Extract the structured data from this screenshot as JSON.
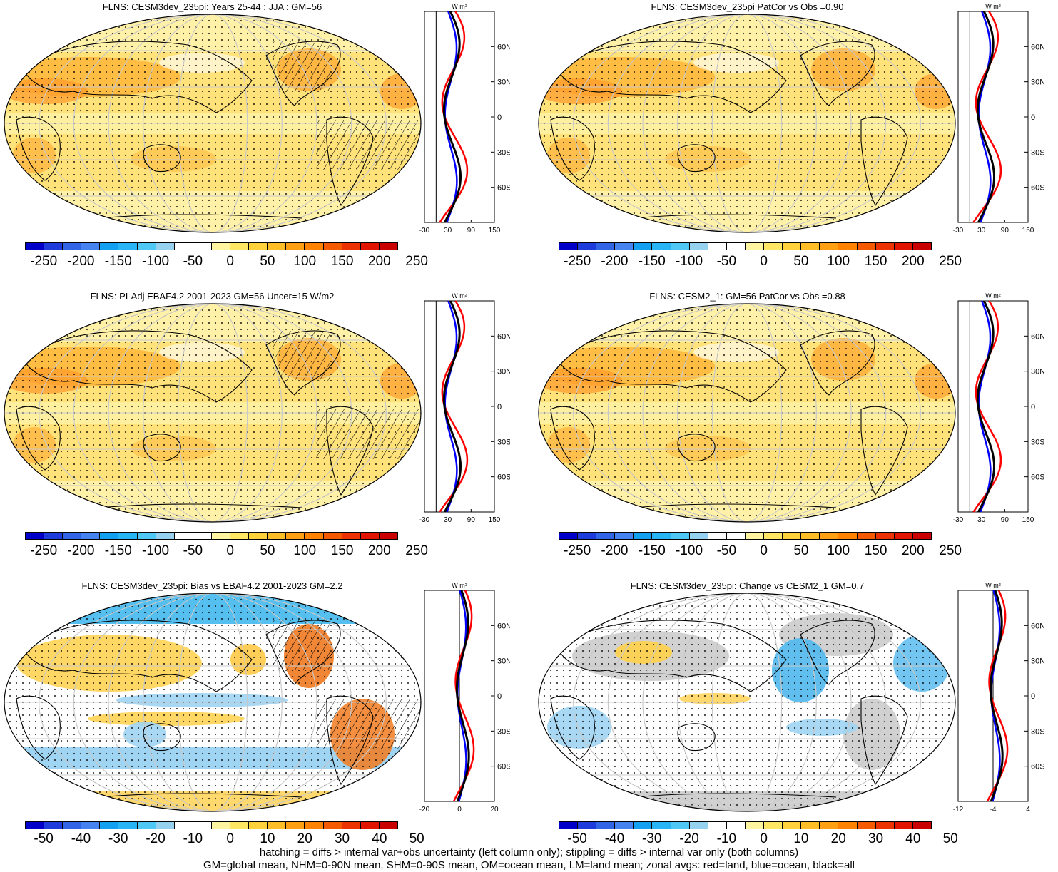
{
  "panels": [
    {
      "title": "FLNS: CESM3dev_235pi: Years 25-44 : JJA : GM=56",
      "scale": "abs",
      "colorbar_labels": [
        "-250",
        "-200",
        "-150",
        "-100",
        "-50",
        "0",
        "50",
        "100",
        "150",
        "200",
        "250"
      ],
      "zonal_units": "W m²",
      "zonal_lat_labels": [
        "60N",
        "30N",
        "0",
        "30S",
        "60S"
      ],
      "zonal_x_labels": [
        "-30",
        "30",
        "90",
        "150"
      ],
      "hatched": true
    },
    {
      "title": "FLNS: CESM3dev_235pi PatCor vs Obs =0.90",
      "scale": "abs",
      "colorbar_labels": [
        "-250",
        "-200",
        "-150",
        "-100",
        "-50",
        "0",
        "50",
        "100",
        "150",
        "200",
        "250"
      ],
      "zonal_units": "W m²",
      "zonal_lat_labels": [
        "60N",
        "30N",
        "0",
        "30S",
        "60S"
      ],
      "zonal_x_labels": [
        "-30",
        "30",
        "90",
        "150"
      ],
      "hatched": false
    },
    {
      "title": "FLNS: PI-Adj EBAF4.2 2001-2023 GM=56 Uncer=15 W/m2",
      "scale": "abs",
      "colorbar_labels": [
        "-250",
        "-200",
        "-150",
        "-100",
        "-50",
        "0",
        "50",
        "100",
        "150",
        "200",
        "250"
      ],
      "zonal_units": "W m²",
      "zonal_lat_labels": [
        "60N",
        "30N",
        "0",
        "30S",
        "60S"
      ],
      "zonal_x_labels": [
        "-30",
        "30",
        "90",
        "150"
      ],
      "hatched": true
    },
    {
      "title": "FLNS: CESM2_1: GM=56 PatCor vs Obs =0.88",
      "scale": "abs",
      "colorbar_labels": [
        "-250",
        "-200",
        "-150",
        "-100",
        "-50",
        "0",
        "50",
        "100",
        "150",
        "200",
        "250"
      ],
      "zonal_units": "W m²",
      "zonal_lat_labels": [
        "60N",
        "30N",
        "0",
        "30S",
        "60S"
      ],
      "zonal_x_labels": [
        "-30",
        "30",
        "90",
        "150"
      ],
      "hatched": false
    },
    {
      "title": "FLNS: CESM3dev_235pi: Bias vs EBAF4.2 2001-2023 GM=2.2",
      "scale": "diff",
      "colorbar_labels": [
        "-50",
        "-40",
        "-30",
        "-20",
        "-10",
        "0",
        "10",
        "20",
        "30",
        "40",
        "50"
      ],
      "zonal_units": "W m²",
      "zonal_lat_labels": [
        "60N",
        "30N",
        "0",
        "30S",
        "60S"
      ],
      "zonal_x_labels": [
        "-20",
        "0",
        "20"
      ],
      "hatched": true
    },
    {
      "title": "FLNS: CESM3dev_235pi: Change vs CESM2_1 GM=0.7",
      "scale": "diff",
      "colorbar_labels": [
        "-50",
        "-40",
        "-30",
        "-20",
        "-10",
        "0",
        "10",
        "20",
        "30",
        "40",
        "50"
      ],
      "zonal_units": "W m²",
      "zonal_lat_labels": [
        "60N",
        "30N",
        "0",
        "30S",
        "60S"
      ],
      "zonal_x_labels": [
        "-12",
        "-4",
        "4"
      ],
      "hatched": false
    }
  ],
  "colors": {
    "palette": [
      "#0000c8",
      "#1e3cdc",
      "#3264e6",
      "#4682f0",
      "#14a0f0",
      "#28b4f5",
      "#50c8f5",
      "#96d2f0",
      "#ffffff",
      "#ffffff",
      "#fff5a0",
      "#ffe664",
      "#ffd23c",
      "#ffbe28",
      "#ffa014",
      "#ff8200",
      "#f55a00",
      "#eb3200",
      "#e11400",
      "#c80000"
    ],
    "land_line": "#000000",
    "zonal_land": "#ff0000",
    "zonal_ocean": "#0000ff",
    "zonal_all": "#000000"
  },
  "footer": {
    "line1": "hatching = diffs > internal var+obs uncertainty (left column only); stippling = diffs > internal var only (both columns)",
    "line2": "GM=global mean, NHM=0-90N mean, SHM=0-90S mean, OM=ocean mean, LM=land mean; zonal avgs: red=land, blue=ocean, black=all"
  }
}
